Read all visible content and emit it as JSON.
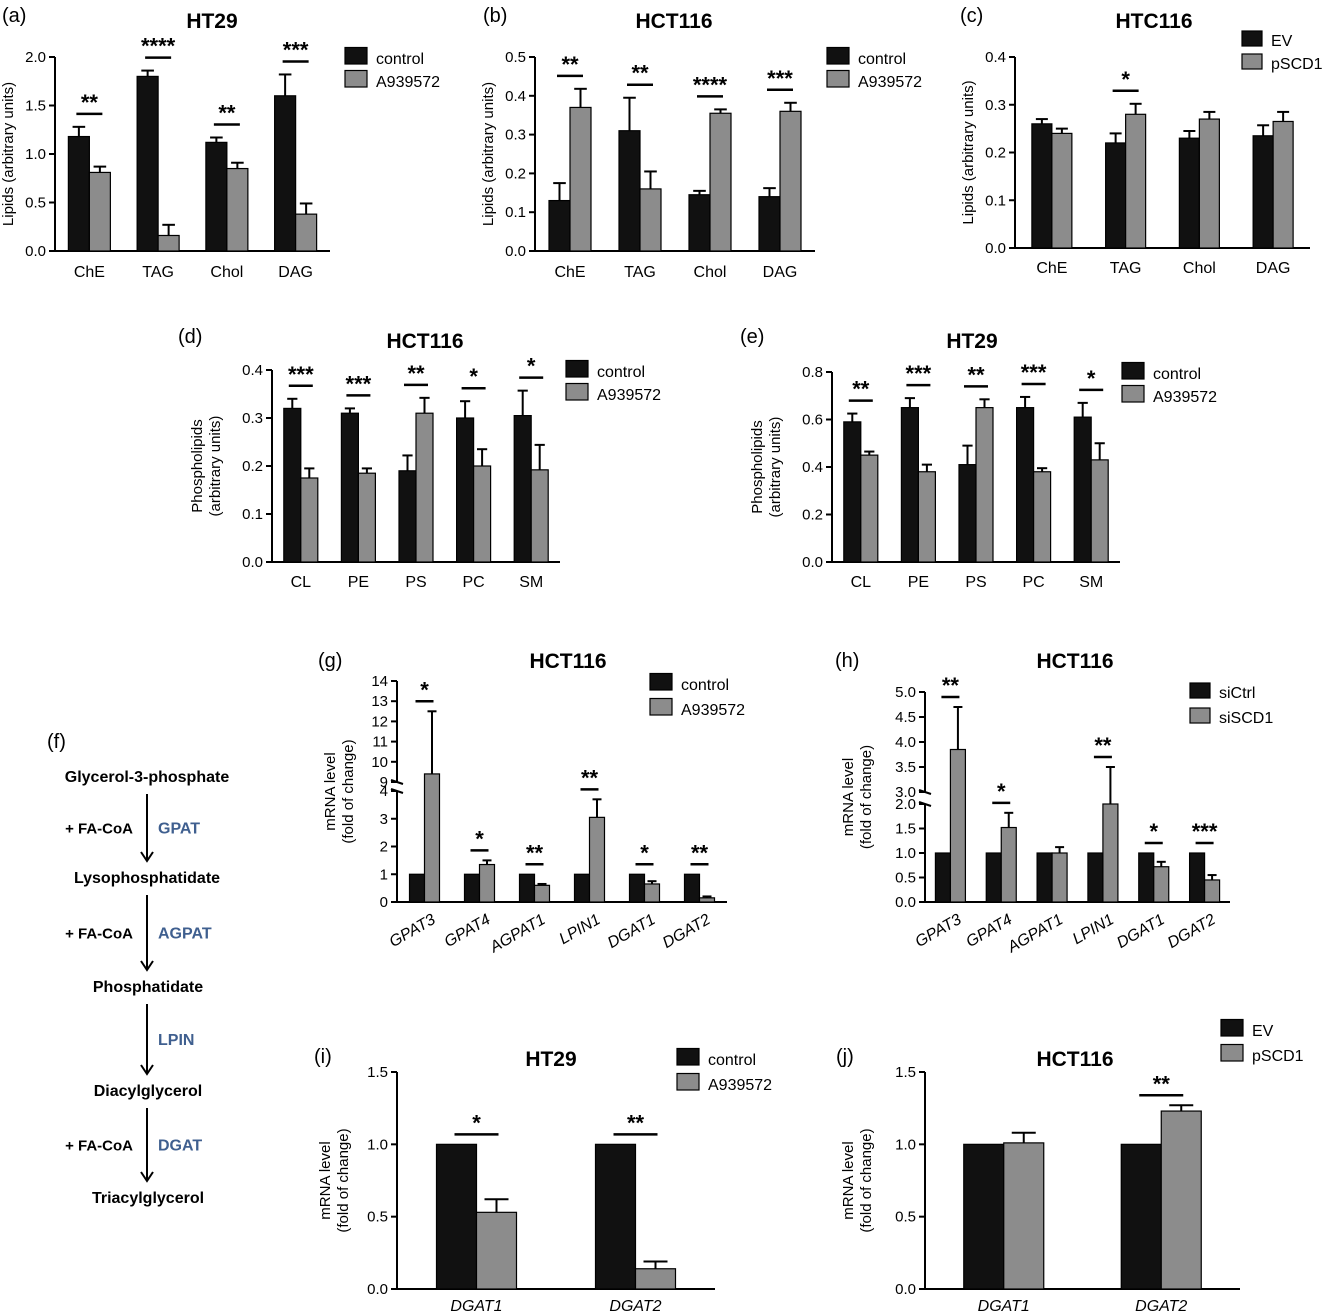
{
  "colors": {
    "dark": "#111111",
    "light": "#8c8c8c"
  },
  "chart_data": [
    {
      "id": "a",
      "panel_label": "(a)",
      "type": "bar",
      "title": "HT29",
      "ylabel": "Lipids (arbitrary units)",
      "ylim": [
        0,
        2.0
      ],
      "yticks": [
        "0.0",
        "0.5",
        "1.0",
        "1.5",
        "2.0"
      ],
      "categories": [
        "ChE",
        "TAG",
        "Chol",
        "DAG"
      ],
      "legend_position": "top-right",
      "series": [
        {
          "name": "control",
          "values": [
            1.18,
            1.8,
            1.12,
            1.6
          ],
          "errors": [
            0.1,
            0.06,
            0.05,
            0.22
          ]
        },
        {
          "name": "A939572",
          "values": [
            0.81,
            0.16,
            0.85,
            0.38
          ],
          "errors": [
            0.06,
            0.11,
            0.06,
            0.11
          ]
        }
      ],
      "significance": [
        "**",
        "****",
        "**",
        "***"
      ]
    },
    {
      "id": "b",
      "panel_label": "(b)",
      "type": "bar",
      "title": "HCT116",
      "ylabel": "Lipids (arbitrary units)",
      "ylim": [
        0,
        0.5
      ],
      "yticks": [
        "0.0",
        "0.1",
        "0.2",
        "0.3",
        "0.4",
        "0.5"
      ],
      "categories": [
        "ChE",
        "TAG",
        "Chol",
        "DAG"
      ],
      "legend_position": "top-right",
      "series": [
        {
          "name": "control",
          "values": [
            0.13,
            0.31,
            0.145,
            0.14
          ],
          "errors": [
            0.045,
            0.085,
            0.01,
            0.022
          ]
        },
        {
          "name": "A939572",
          "values": [
            0.37,
            0.16,
            0.355,
            0.36
          ],
          "errors": [
            0.048,
            0.045,
            0.01,
            0.022
          ]
        }
      ],
      "significance": [
        "**",
        "**",
        "****",
        "***"
      ]
    },
    {
      "id": "c",
      "panel_label": "(c)",
      "type": "bar",
      "title": "HTC116",
      "ylabel": "Lipids (arbitrary units)",
      "ylim": [
        0,
        0.4
      ],
      "yticks": [
        "0.0",
        "0.1",
        "0.2",
        "0.3",
        "0.4"
      ],
      "categories": [
        "ChE",
        "TAG",
        "Chol",
        "DAG"
      ],
      "legend_position": "top-right",
      "series": [
        {
          "name": "EV",
          "values": [
            0.26,
            0.22,
            0.23,
            0.235
          ],
          "errors": [
            0.01,
            0.02,
            0.015,
            0.022
          ]
        },
        {
          "name": "pSCD1",
          "values": [
            0.24,
            0.28,
            0.27,
            0.265
          ],
          "errors": [
            0.01,
            0.022,
            0.015,
            0.02
          ]
        }
      ],
      "significance": [
        "",
        "*",
        "",
        ""
      ]
    },
    {
      "id": "d",
      "panel_label": "(d)",
      "type": "bar",
      "title": "HCT116",
      "ylabel": [
        "Phospholipids",
        "(arbitrary units)"
      ],
      "ylim": [
        0,
        0.4
      ],
      "yticks": [
        "0.0",
        "0.1",
        "0.2",
        "0.3",
        "0.4"
      ],
      "categories": [
        "CL",
        "PE",
        "PS",
        "PC",
        "SM"
      ],
      "legend_position": "top-right",
      "series": [
        {
          "name": "control",
          "values": [
            0.32,
            0.31,
            0.19,
            0.3,
            0.305
          ],
          "errors": [
            0.02,
            0.01,
            0.032,
            0.035,
            0.052
          ]
        },
        {
          "name": "A939572",
          "values": [
            0.175,
            0.185,
            0.31,
            0.2,
            0.192
          ],
          "errors": [
            0.02,
            0.01,
            0.032,
            0.035,
            0.052
          ]
        }
      ],
      "significance": [
        "***",
        "***",
        "**",
        "*",
        "*"
      ]
    },
    {
      "id": "e",
      "panel_label": "(e)",
      "type": "bar",
      "title": "HT29",
      "ylabel": [
        "Phospholipids",
        "(arbitrary units)"
      ],
      "ylim": [
        0,
        0.8
      ],
      "yticks": [
        "0.0",
        "0.2",
        "0.4",
        "0.6",
        "0.8"
      ],
      "categories": [
        "CL",
        "PE",
        "PS",
        "PC",
        "SM"
      ],
      "legend_position": "top-right",
      "series": [
        {
          "name": "control",
          "values": [
            0.59,
            0.65,
            0.41,
            0.65,
            0.61
          ],
          "errors": [
            0.035,
            0.04,
            0.08,
            0.045,
            0.06
          ]
        },
        {
          "name": "A939572",
          "values": [
            0.45,
            0.38,
            0.65,
            0.38,
            0.43
          ],
          "errors": [
            0.015,
            0.03,
            0.035,
            0.015,
            0.07
          ]
        }
      ],
      "significance": [
        "**",
        "***",
        "**",
        "***",
        "*"
      ]
    },
    {
      "id": "g",
      "panel_label": "(g)",
      "type": "bar",
      "title": "HCT116",
      "ylabel": [
        "mRNA level",
        "(fold of change)"
      ],
      "broken_axis": true,
      "ylim_lower": [
        0,
        4
      ],
      "ylim_upper": [
        9,
        14
      ],
      "yticks_lower": [
        "0",
        "1",
        "2",
        "3",
        "4"
      ],
      "yticks_upper": [
        "9",
        "10",
        "11",
        "12",
        "13",
        "14"
      ],
      "categories": [
        "GPAT3",
        "GPAT4",
        "AGPAT1",
        "LPIN1",
        "DGAT1",
        "DGAT2"
      ],
      "legend_position": "top-right",
      "series": [
        {
          "name": "control",
          "values": [
            1,
            1,
            1,
            1,
            1,
            1
          ],
          "errors": [
            0,
            0,
            0,
            0,
            0,
            0
          ]
        },
        {
          "name": "A939572",
          "values": [
            9.4,
            1.35,
            0.6,
            3.05,
            0.65,
            0.15
          ],
          "errors": [
            3.1,
            0.15,
            0.05,
            0.65,
            0.1,
            0.05
          ]
        }
      ],
      "significance": [
        "*",
        "*",
        "**",
        "**",
        "*",
        "**"
      ]
    },
    {
      "id": "h",
      "panel_label": "(h)",
      "type": "bar",
      "title": "HCT116",
      "ylabel": [
        "mRNA level",
        "(fold of change)"
      ],
      "broken_axis": true,
      "ylim_lower": [
        0,
        2.0
      ],
      "ylim_upper": [
        3.0,
        5.0
      ],
      "yticks_lower": [
        "0.0",
        "0.5",
        "1.0",
        "1.5",
        "2.0"
      ],
      "yticks_upper": [
        "3.0",
        "3.5",
        "4.0",
        "4.5",
        "5.0"
      ],
      "categories": [
        "GPAT3",
        "GPAT4",
        "AGPAT1",
        "LPIN1",
        "DGAT1",
        "DGAT2"
      ],
      "legend_position": "top-right",
      "series": [
        {
          "name": "siCtrl",
          "values": [
            1,
            1,
            1,
            1,
            1,
            1
          ],
          "errors": [
            0,
            0,
            0,
            0,
            0,
            0
          ]
        },
        {
          "name": "siSCD1",
          "values": [
            3.85,
            1.52,
            1.0,
            2.9,
            0.72,
            0.45
          ],
          "errors": [
            0.85,
            0.3,
            0.12,
            0.6,
            0.1,
            0.1
          ]
        }
      ],
      "significance": [
        "**",
        "*",
        "",
        "**",
        "*",
        "***"
      ]
    },
    {
      "id": "i",
      "panel_label": "(i)",
      "type": "bar",
      "title": "HT29",
      "ylabel": [
        "mRNA level",
        "(fold of change)"
      ],
      "ylim": [
        0,
        1.5
      ],
      "yticks": [
        "0.0",
        "0.5",
        "1.0",
        "1.5"
      ],
      "categories": [
        "DGAT1",
        "DGAT2"
      ],
      "legend_position": "top-right",
      "series": [
        {
          "name": "control",
          "values": [
            1.0,
            1.0
          ],
          "errors": [
            0,
            0
          ]
        },
        {
          "name": "A939572",
          "values": [
            0.53,
            0.14
          ],
          "errors": [
            0.09,
            0.05
          ]
        }
      ],
      "significance": [
        "*",
        "**"
      ]
    },
    {
      "id": "j",
      "panel_label": "(j)",
      "type": "bar",
      "title": "HCT116",
      "ylabel": [
        "mRNA level",
        "(fold of change)"
      ],
      "ylim": [
        0,
        1.5
      ],
      "yticks": [
        "0.0",
        "0.5",
        "1.0",
        "1.5"
      ],
      "categories": [
        "DGAT1",
        "DGAT2"
      ],
      "legend_position": "top-right",
      "series": [
        {
          "name": "EV",
          "values": [
            1.0,
            1.0
          ],
          "errors": [
            0,
            0
          ]
        },
        {
          "name": "pSCD1",
          "values": [
            1.01,
            1.23
          ],
          "errors": [
            0.07,
            0.04
          ]
        }
      ],
      "significance": [
        "",
        "**"
      ]
    }
  ],
  "pathway": {
    "panel_label": "(f)",
    "steps": [
      "Glycerol-3-phosphate",
      "Lysophosphatidate",
      "Phosphatidate",
      "Diacylglycerol",
      "Triacylglycerol"
    ],
    "reactions": [
      {
        "cofactor": "+ FA-CoA",
        "enzyme": "GPAT"
      },
      {
        "cofactor": "+ FA-CoA",
        "enzyme": "AGPAT"
      },
      {
        "cofactor": "",
        "enzyme": "LPIN"
      },
      {
        "cofactor": "+ FA-CoA",
        "enzyme": "DGAT"
      }
    ]
  }
}
